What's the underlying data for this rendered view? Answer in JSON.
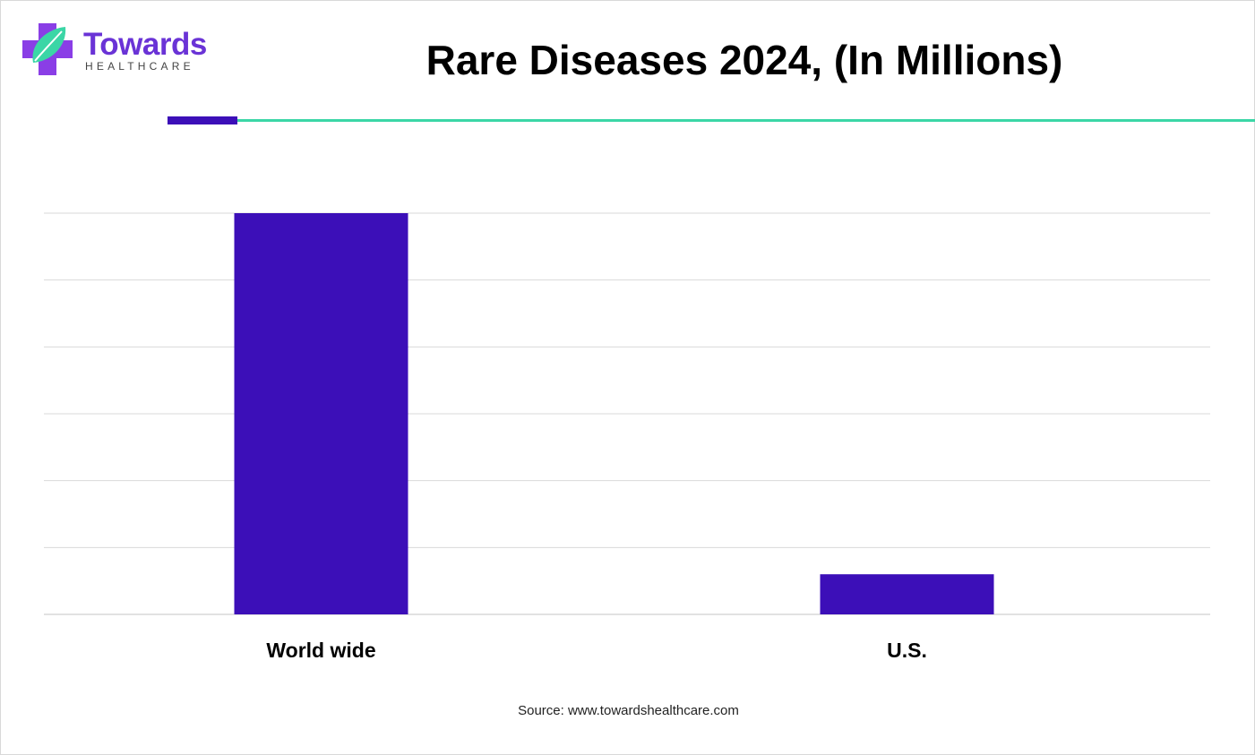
{
  "logo": {
    "word": "Towards",
    "sub": "HEALTHCARE"
  },
  "title": "Rare Diseases 2024, (In Millions)",
  "source": "Source: www.towardshealthcare.com",
  "colors": {
    "bar": "#3c0fb8",
    "grid": "#d9d9d9",
    "logo_purple": "#6a33d6",
    "logo_green": "#3bd6a6"
  },
  "chart_data": {
    "type": "bar",
    "title": "Rare Diseases 2024, (In Millions)",
    "categories": [
      "World wide",
      "U.S."
    ],
    "values": [
      300,
      30
    ],
    "ylim": [
      0,
      300
    ],
    "grid": true,
    "legend": "none"
  }
}
